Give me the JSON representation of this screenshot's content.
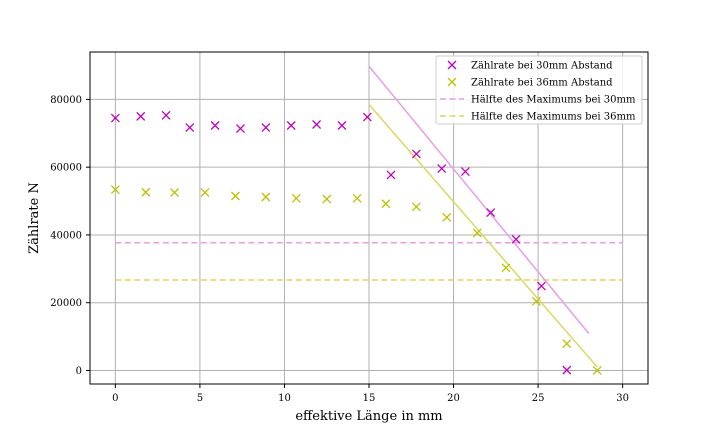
{
  "chart_data": {
    "type": "scatter",
    "xlabel": "effektive Länge in mm",
    "ylabel": "Zählrate N",
    "xlim": [
      -1.5,
      31.5
    ],
    "ylim": [
      -4000,
      94000
    ],
    "xticks": [
      0,
      5,
      10,
      15,
      20,
      25,
      30
    ],
    "yticks": [
      0,
      20000,
      40000,
      60000,
      80000
    ],
    "grid": true,
    "legend_position": "top-right",
    "series": [
      {
        "name": "Zählrate bei 30mm Abstand",
        "kind": "scatter",
        "marker": "x",
        "color": "#bf00bf",
        "x": [
          0,
          1.5,
          3.0,
          4.4,
          5.9,
          7.4,
          8.9,
          10.4,
          11.9,
          13.4,
          14.9,
          16.3,
          17.8,
          19.3,
          20.7,
          22.2,
          23.7,
          25.2,
          26.7
        ],
        "y": [
          74500,
          75000,
          75300,
          71700,
          72300,
          71400,
          71700,
          72300,
          72600,
          72300,
          74800,
          57700,
          63900,
          59600,
          58700,
          46600,
          38700,
          24900,
          100
        ]
      },
      {
        "name": "Zählrate bei 36mm Abstand",
        "kind": "scatter",
        "marker": "x",
        "color": "#bfbf00",
        "x": [
          0,
          1.8,
          3.5,
          5.3,
          7.1,
          8.9,
          10.7,
          12.5,
          14.3,
          16.0,
          17.8,
          19.6,
          21.4,
          23.1,
          24.9,
          26.7,
          28.5
        ],
        "y": [
          53400,
          52600,
          52500,
          52500,
          51500,
          51200,
          50800,
          50600,
          50800,
          49200,
          48300,
          45200,
          40600,
          30300,
          20400,
          7900,
          0
        ]
      },
      {
        "name": "Hälfte des Maximums bei 30mm",
        "kind": "hline",
        "style": "dashed",
        "color": "#e69ee6",
        "x": [
          0,
          30
        ],
        "y": 37700
      },
      {
        "name": "Hälfte des Maximums bei 36mm",
        "kind": "hline",
        "style": "dashed",
        "color": "#dbd75e",
        "x": [
          0,
          30
        ],
        "y": 26700
      },
      {
        "kind": "fit-line",
        "color": "#e69ee6",
        "x": [
          15,
          28
        ],
        "y": [
          89800,
          10900
        ]
      },
      {
        "kind": "fit-line",
        "color": "#dbd75e",
        "x": [
          15,
          28.5
        ],
        "y": [
          78500,
          1000
        ]
      }
    ]
  }
}
